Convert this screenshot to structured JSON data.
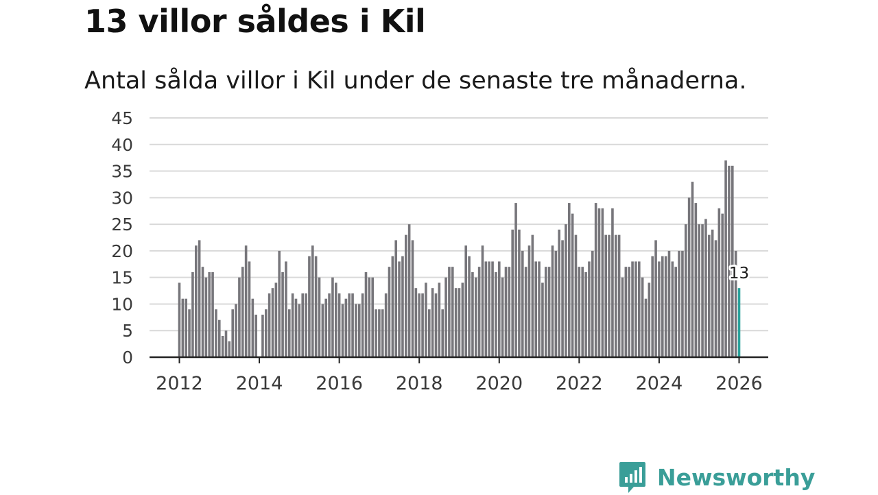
{
  "header": {
    "title": "13 villor såldes i Kil",
    "subtitle": "Antal sålda villor i Kil under de senaste tre månaderna."
  },
  "chart_data": {
    "type": "bar",
    "title": "13 villor såldes i Kil",
    "subtitle": "Antal sålda villor i Kil under de senaste tre månaderna.",
    "xlabel": "",
    "ylabel": "",
    "ylim": [
      0,
      45
    ],
    "yticks": [
      "0",
      "5",
      "10",
      "15",
      "20",
      "25",
      "30",
      "35",
      "40",
      "45"
    ],
    "xticks": [
      "2012",
      "2014",
      "2016",
      "2018",
      "2020",
      "2022",
      "2024",
      "2026"
    ],
    "grid": true,
    "start": "2012-01",
    "end": "2026-01",
    "frequency": "monthly",
    "values": [
      14,
      11,
      11,
      9,
      16,
      21,
      22,
      17,
      15,
      16,
      16,
      9,
      7,
      4,
      5,
      3,
      9,
      10,
      15,
      17,
      21,
      18,
      11,
      8,
      0,
      8,
      9,
      12,
      13,
      14,
      20,
      16,
      18,
      9,
      12,
      11,
      10,
      12,
      12,
      19,
      21,
      19,
      15,
      10,
      11,
      12,
      15,
      14,
      12,
      10,
      11,
      12,
      12,
      10,
      10,
      12,
      16,
      15,
      15,
      9,
      9,
      9,
      12,
      17,
      19,
      22,
      18,
      19,
      23,
      25,
      22,
      13,
      12,
      12,
      14,
      9,
      13,
      12,
      14,
      9,
      15,
      17,
      17,
      13,
      13,
      14,
      21,
      19,
      16,
      15,
      17,
      21,
      18,
      18,
      18,
      16,
      18,
      15,
      17,
      17,
      24,
      29,
      24,
      20,
      17,
      21,
      23,
      18,
      18,
      14,
      17,
      17,
      21,
      20,
      24,
      22,
      25,
      29,
      27,
      23,
      17,
      17,
      16,
      18,
      20,
      29,
      28,
      28,
      23,
      23,
      28,
      23,
      23,
      15,
      17,
      17,
      18,
      18,
      18,
      15,
      11,
      14,
      19,
      22,
      18,
      19,
      19,
      20,
      18,
      17,
      20,
      20,
      25,
      30,
      33,
      29,
      25,
      25,
      26,
      23,
      24,
      22,
      28,
      27,
      37,
      36,
      36,
      20,
      13
    ],
    "bar_color": "#77767b",
    "highlight_color": "#2aa39c",
    "highlight": {
      "label": "13",
      "value": 13,
      "period": "2026-01"
    }
  },
  "brand": {
    "name": "Newsworthy",
    "icon": "newsworthy-logo-icon",
    "color": "#3a9e98"
  }
}
